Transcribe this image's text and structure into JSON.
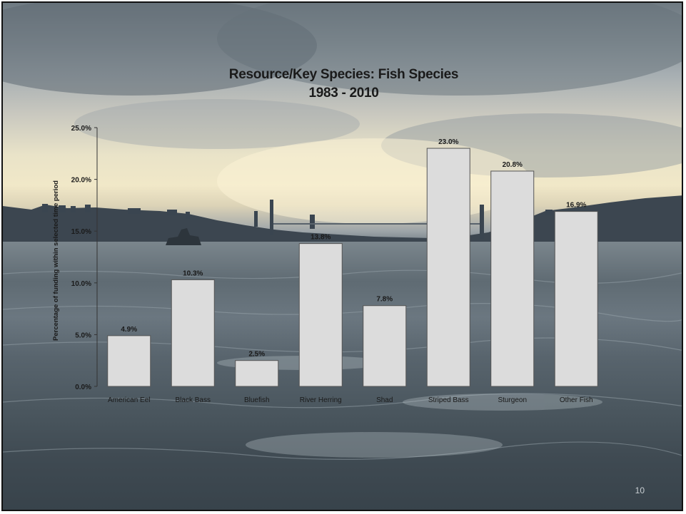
{
  "slide": {
    "title_line1": "Resource/Key Species: Fish Species",
    "title_line2": "1983 - 2010",
    "page_number": "10"
  },
  "colors": {
    "bar_fill": "#dcdcdc",
    "bar_stroke": "#555555",
    "axis": "#333333",
    "text": "#1a1a1a"
  },
  "chart_data": {
    "type": "bar",
    "title": "Resource/Key Species: Fish Species 1983 - 2010",
    "xlabel": "",
    "ylabel": "Percentage of funding within selected time period",
    "categories": [
      "American Eel",
      "Black Bass",
      "Bluefish",
      "River Herring",
      "Shad",
      "Striped Bass",
      "Sturgeon",
      "Other Fish"
    ],
    "values": [
      4.9,
      10.3,
      2.5,
      13.8,
      7.8,
      23.0,
      20.8,
      16.9
    ],
    "value_labels": [
      "4.9%",
      "10.3%",
      "2.5%",
      "13.8%",
      "7.8%",
      "23.0%",
      "20.8%",
      "16.9%"
    ],
    "ylim": [
      0,
      25
    ],
    "yticks": [
      "0.0%",
      "5.0%",
      "10.0%",
      "15.0%",
      "20.0%",
      "25.0%"
    ],
    "grid": false,
    "legend": "none"
  }
}
